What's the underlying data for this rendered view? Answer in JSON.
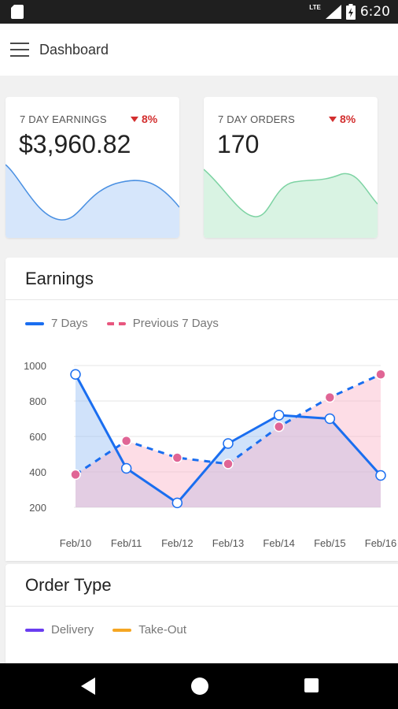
{
  "status_bar": {
    "network": "LTE",
    "time": "6:20",
    "icons": [
      "sd-card-icon",
      "signal-icon",
      "battery-icon"
    ]
  },
  "app_bar": {
    "title": "Dashboard",
    "menu_icon": "hamburger-menu-icon"
  },
  "stats": [
    {
      "label": "7 DAY EARNINGS",
      "value": "$3,960.82",
      "delta": "8%",
      "trend": "down",
      "color": "#4a90e2",
      "fill": "#d6e6fb"
    },
    {
      "label": "7 DAY ORDERS",
      "value": "170",
      "delta": "8%",
      "trend": "down",
      "color": "#7dd3a3",
      "fill": "#d9f3e3"
    }
  ],
  "earnings": {
    "title": "Earnings",
    "legend": [
      {
        "label": "7 Days",
        "style": "solid",
        "color": "#1a6ef0"
      },
      {
        "label": "Previous 7 Days",
        "style": "dashed",
        "color": "#e8567e"
      }
    ]
  },
  "chart_data": {
    "type": "line",
    "title": "",
    "xlabel": "",
    "ylabel": "",
    "categories": [
      "Feb/10",
      "Feb/11",
      "Feb/12",
      "Feb/13",
      "Feb/14",
      "Feb/15",
      "Feb/16"
    ],
    "series": [
      {
        "name": "7 Days",
        "values": [
          950,
          420,
          225,
          560,
          720,
          700,
          380
        ],
        "color": "#1a6ef0",
        "fill": "rgba(150,190,245,0.45)",
        "dashed": false
      },
      {
        "name": "Previous 7 Days",
        "values": [
          385,
          575,
          480,
          445,
          655,
          820,
          950
        ],
        "color": "#1a6ef0",
        "fill": "rgba(250,180,200,0.45)",
        "dashed": true,
        "point_color": "#e06595"
      }
    ],
    "y_ticks": [
      "1000",
      "800",
      "600",
      "400",
      "200"
    ],
    "ylim": [
      200,
      1000
    ],
    "grid": true
  },
  "order_type": {
    "title": "Order Type",
    "legend": [
      {
        "label": "Delivery",
        "color": "#6a3df0"
      },
      {
        "label": "Take-Out",
        "color": "#f5a623"
      }
    ]
  },
  "nav_bar": {
    "buttons": [
      "back-icon",
      "home-icon",
      "recents-icon"
    ]
  }
}
